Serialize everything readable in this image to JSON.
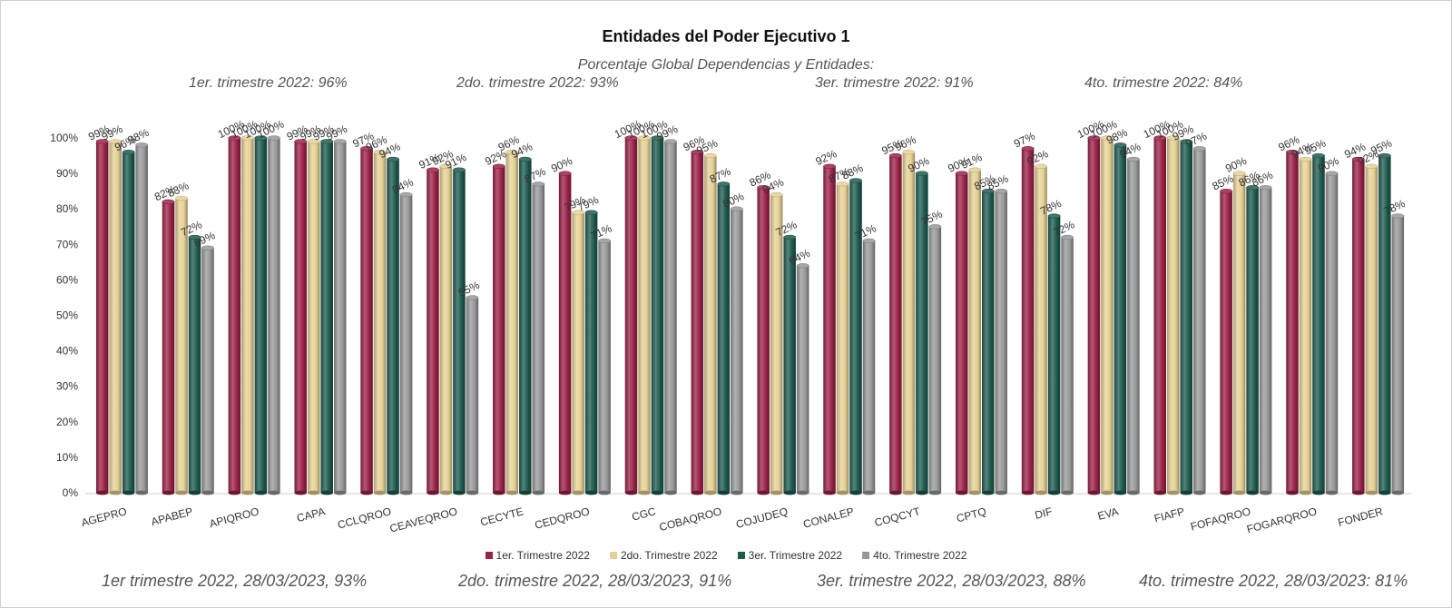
{
  "chart_data": {
    "type": "bar",
    "title": "Entidades del Poder Ejecutivo 1",
    "subtitle": "Porcentaje Global  Dependencias y Entidades:",
    "top_notes": [
      "1er. trimestre 2022: 96%",
      "2do. trimestre 2022: 93%",
      "3er. trimestre 2022: 91%",
      "4to. trimestre 2022: 84%"
    ],
    "bottom_notes": [
      "1er trimestre  2022,  28/03/2023, 93%",
      "2do. trimestre 2022, 28/03/2023, 91%",
      "3er. trimestre 2022, 28/03/2023, 88%",
      "4to. trimestre 2022, 28/03/2023: 81%"
    ],
    "categories": [
      "AGEPRO",
      "APABEP",
      "APIQROO",
      "CAPA",
      "CCLQROO",
      "CEAVEQROO",
      "CECYTE",
      "CEDQROO",
      "CGC",
      "COBAQROO",
      "COJUDEQ",
      "CONALEP",
      "COQCYT",
      "CPTQ",
      "DIF",
      "EVA",
      "FIAFP",
      "FOFAQROO",
      "FOGARQROO",
      "FONDER"
    ],
    "series": [
      {
        "name": "1er. Trimestre 2022",
        "color": "#9b2247",
        "values": [
          99,
          82,
          100,
          99,
          97,
          91,
          92,
          90,
          100,
          96,
          86,
          92,
          95,
          90,
          97,
          100,
          100,
          85,
          96,
          94
        ]
      },
      {
        "name": "2do. Trimestre 2022",
        "color": "#e6d194",
        "values": [
          99,
          83,
          100,
          99,
          96,
          92,
          96,
          79,
          100,
          95,
          84,
          87,
          96,
          91,
          92,
          100,
          100,
          90,
          94,
          92
        ]
      },
      {
        "name": "3er. Trimestre 2022",
        "color": "#1e5b4f",
        "values": [
          96,
          72,
          100,
          99,
          94,
          91,
          94,
          79,
          100,
          87,
          72,
          88,
          90,
          85,
          78,
          98,
          99,
          86,
          95,
          95
        ]
      },
      {
        "name": "4to. Trimestre 2022",
        "color": "#98989a",
        "values": [
          98,
          69,
          100,
          99,
          84,
          55,
          87,
          71,
          99,
          80,
          64,
          71,
          75,
          85,
          72,
          94,
          97,
          86,
          90,
          78
        ]
      }
    ],
    "yticks": [
      "0%",
      "10%",
      "20%",
      "30%",
      "40%",
      "50%",
      "60%",
      "70%",
      "80%",
      "90%",
      "100%"
    ],
    "ylim": [
      0,
      100
    ],
    "grid": false,
    "legend_position": "bottom"
  }
}
